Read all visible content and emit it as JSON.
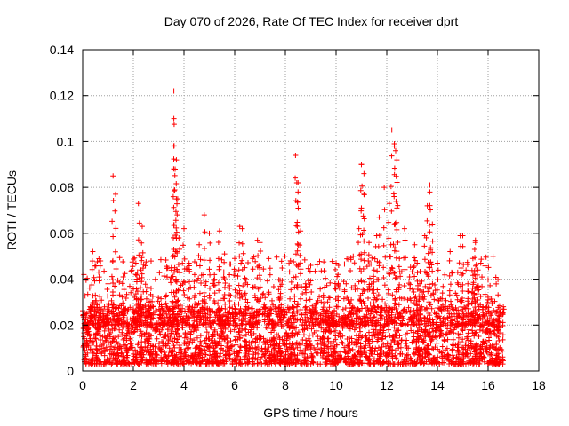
{
  "chart_data": {
    "type": "scatter",
    "title": "Day 070 of 2026, Rate Of TEC Index for receiver dprt",
    "xlabel": "GPS time / hours",
    "ylabel": "ROTI / TECUs",
    "xlim": [
      0,
      18
    ],
    "ylim": [
      0,
      0.14
    ],
    "x_ticks": [
      "0",
      "2",
      "4",
      "6",
      "8",
      "10",
      "12",
      "14",
      "16",
      "18"
    ],
    "y_ticks": [
      "0",
      "0.02",
      "0.04",
      "0.06",
      "0.08",
      "0.1",
      "0.12",
      "0.14"
    ],
    "grid": true,
    "marker": "+",
    "series": [
      {
        "color": "#ff0000",
        "x": [
          0.1,
          0.2,
          0.3,
          0.4,
          0.5,
          0.6,
          0.8,
          1.0,
          1.2,
          1.4,
          1.6,
          1.8,
          2.0,
          2.1,
          2.2,
          2.3,
          2.5,
          2.7,
          2.9,
          3.1,
          3.3,
          3.5,
          3.6,
          3.6,
          3.7,
          3.75,
          3.8,
          4.0,
          4.2,
          4.4,
          4.6,
          4.8,
          5.0,
          5.2,
          5.4,
          5.6,
          5.8,
          6.0,
          6.2,
          6.4,
          6.6,
          6.9,
          7.2,
          7.5,
          7.8,
          8.2,
          8.4,
          8.5,
          8.6,
          8.8,
          9.0,
          9.2,
          9.5,
          9.8,
          10.0,
          10.3,
          10.6,
          10.9,
          11.0,
          11.1,
          11.3,
          11.5,
          11.7,
          11.9,
          12.1,
          12.2,
          12.3,
          12.4,
          12.5,
          12.7,
          12.9,
          13.1,
          13.3,
          13.5,
          13.6,
          13.7,
          13.8,
          14.0,
          14.2,
          14.5,
          14.8,
          15.0,
          15.2,
          15.4,
          15.5,
          15.6,
          15.8,
          16.0,
          16.2,
          16.4,
          16.6,
          1.2,
          1.3,
          2.2,
          2.35,
          3.6,
          3.65,
          3.7,
          4.8,
          5.4,
          6.3,
          7.0,
          8.45,
          8.5,
          10.1,
          11.0,
          11.1,
          11.6,
          12.3,
          12.35,
          12.4,
          13.2,
          13.7,
          14.9,
          15.5
        ],
        "y": [
          0.021,
          0.016,
          0.028,
          0.052,
          0.033,
          0.018,
          0.025,
          0.038,
          0.029,
          0.022,
          0.041,
          0.019,
          0.027,
          0.047,
          0.031,
          0.044,
          0.024,
          0.036,
          0.018,
          0.028,
          0.033,
          0.045,
          0.122,
          0.11,
          0.092,
          0.075,
          0.058,
          0.062,
          0.047,
          0.039,
          0.055,
          0.031,
          0.06,
          0.042,
          0.027,
          0.051,
          0.036,
          0.049,
          0.063,
          0.045,
          0.025,
          0.057,
          0.032,
          0.022,
          0.037,
          0.048,
          0.094,
          0.082,
          0.061,
          0.038,
          0.046,
          0.029,
          0.033,
          0.025,
          0.047,
          0.039,
          0.031,
          0.062,
          0.09,
          0.077,
          0.056,
          0.044,
          0.067,
          0.08,
          0.073,
          0.105,
          0.098,
          0.071,
          0.049,
          0.062,
          0.041,
          0.055,
          0.038,
          0.059,
          0.072,
          0.081,
          0.064,
          0.047,
          0.034,
          0.052,
          0.043,
          0.059,
          0.038,
          0.049,
          0.057,
          0.044,
          0.028,
          0.031,
          0.022,
          0.018,
          0.028,
          0.085,
          0.077,
          0.073,
          0.063,
          0.098,
          0.088,
          0.075,
          0.068,
          0.061,
          0.062,
          0.056,
          0.082,
          0.078,
          0.046,
          0.09,
          0.086,
          0.059,
          0.099,
          0.096,
          0.092,
          0.047,
          0.078,
          0.059,
          0.056
        ]
      }
    ],
    "dense_band": {
      "x_range": [
        0,
        16.6
      ],
      "y_range": [
        0.003,
        0.028
      ]
    }
  }
}
